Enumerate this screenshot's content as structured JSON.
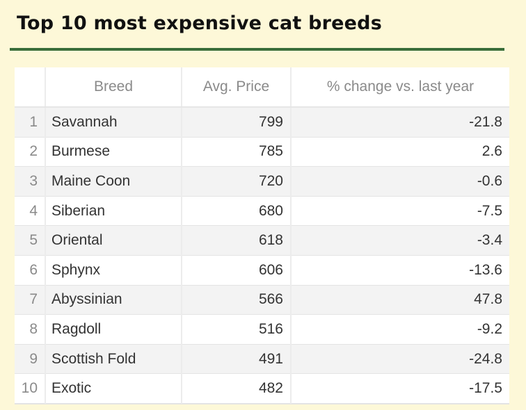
{
  "title": "Top 10 most expensive cat breeds",
  "colors": {
    "background": "#fdf8d8",
    "title_rule": "#3a6e3a",
    "row_stripe": "#f3f3f3"
  },
  "chart_data": {
    "type": "table",
    "title": "Top 10 most expensive cat breeds",
    "columns": [
      "",
      "Breed",
      "Avg. Price",
      "% change vs. last year"
    ],
    "rows": [
      {
        "rank": "1",
        "breed": "Savannah",
        "price": 799,
        "change": -21.8
      },
      {
        "rank": "2",
        "breed": "Burmese",
        "price": 785,
        "change": 2.6
      },
      {
        "rank": "3",
        "breed": "Maine Coon",
        "price": 720,
        "change": -0.6
      },
      {
        "rank": "4",
        "breed": "Siberian",
        "price": 680,
        "change": -7.5
      },
      {
        "rank": "5",
        "breed": "Oriental",
        "price": 618,
        "change": -3.4
      },
      {
        "rank": "6",
        "breed": "Sphynx",
        "price": 606,
        "change": -13.6
      },
      {
        "rank": "7",
        "breed": "Abyssinian",
        "price": 566,
        "change": 47.8
      },
      {
        "rank": "8",
        "breed": "Ragdoll",
        "price": 516,
        "change": -9.2
      },
      {
        "rank": "9",
        "breed": "Scottish Fold",
        "price": 491,
        "change": -24.8
      },
      {
        "rank": "10",
        "breed": "Exotic",
        "price": 482,
        "change": -17.5
      }
    ]
  }
}
